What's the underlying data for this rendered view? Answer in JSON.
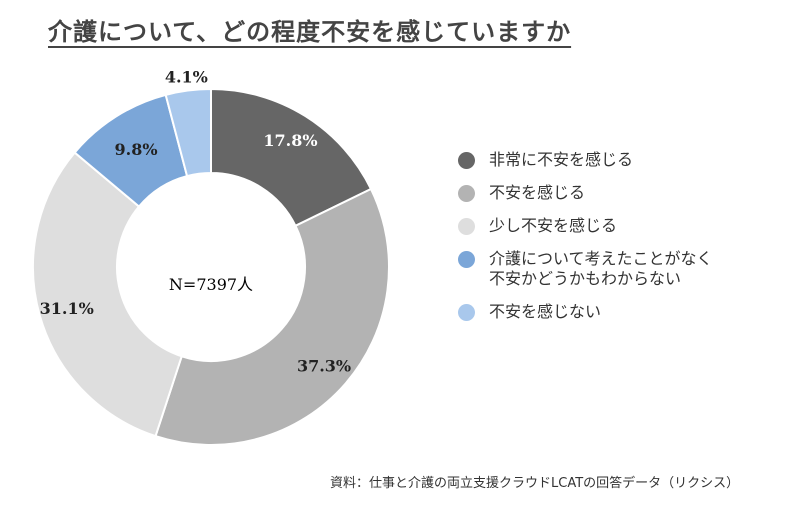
{
  "title": "介護について、どの程度不安を感じていますか",
  "source": "資料：仕事と介護の両立支援クラウドLCATの回答データ（リクシス）",
  "chart_data": {
    "type": "pie",
    "variant": "donut",
    "center_label": "N=7397人",
    "legend_position": "right",
    "slices": [
      {
        "name": "非常に不安を感じる",
        "value": 17.8,
        "label": "17.8%",
        "color": "#666666"
      },
      {
        "name": "不安を感じる",
        "value": 37.3,
        "label": "37.3%",
        "color": "#b3b3b3"
      },
      {
        "name": "少し不安を感じる",
        "value": 31.1,
        "label": "31.1%",
        "color": "#dedede"
      },
      {
        "name": "介護について考えたことがなく\n不安かどうかもわからない",
        "value": 9.8,
        "label": "9.8%",
        "color": "#7ba6d8"
      },
      {
        "name": "不安を感じない",
        "value": 4.1,
        "label": "4.1%",
        "color": "#a9c8ec"
      }
    ]
  }
}
